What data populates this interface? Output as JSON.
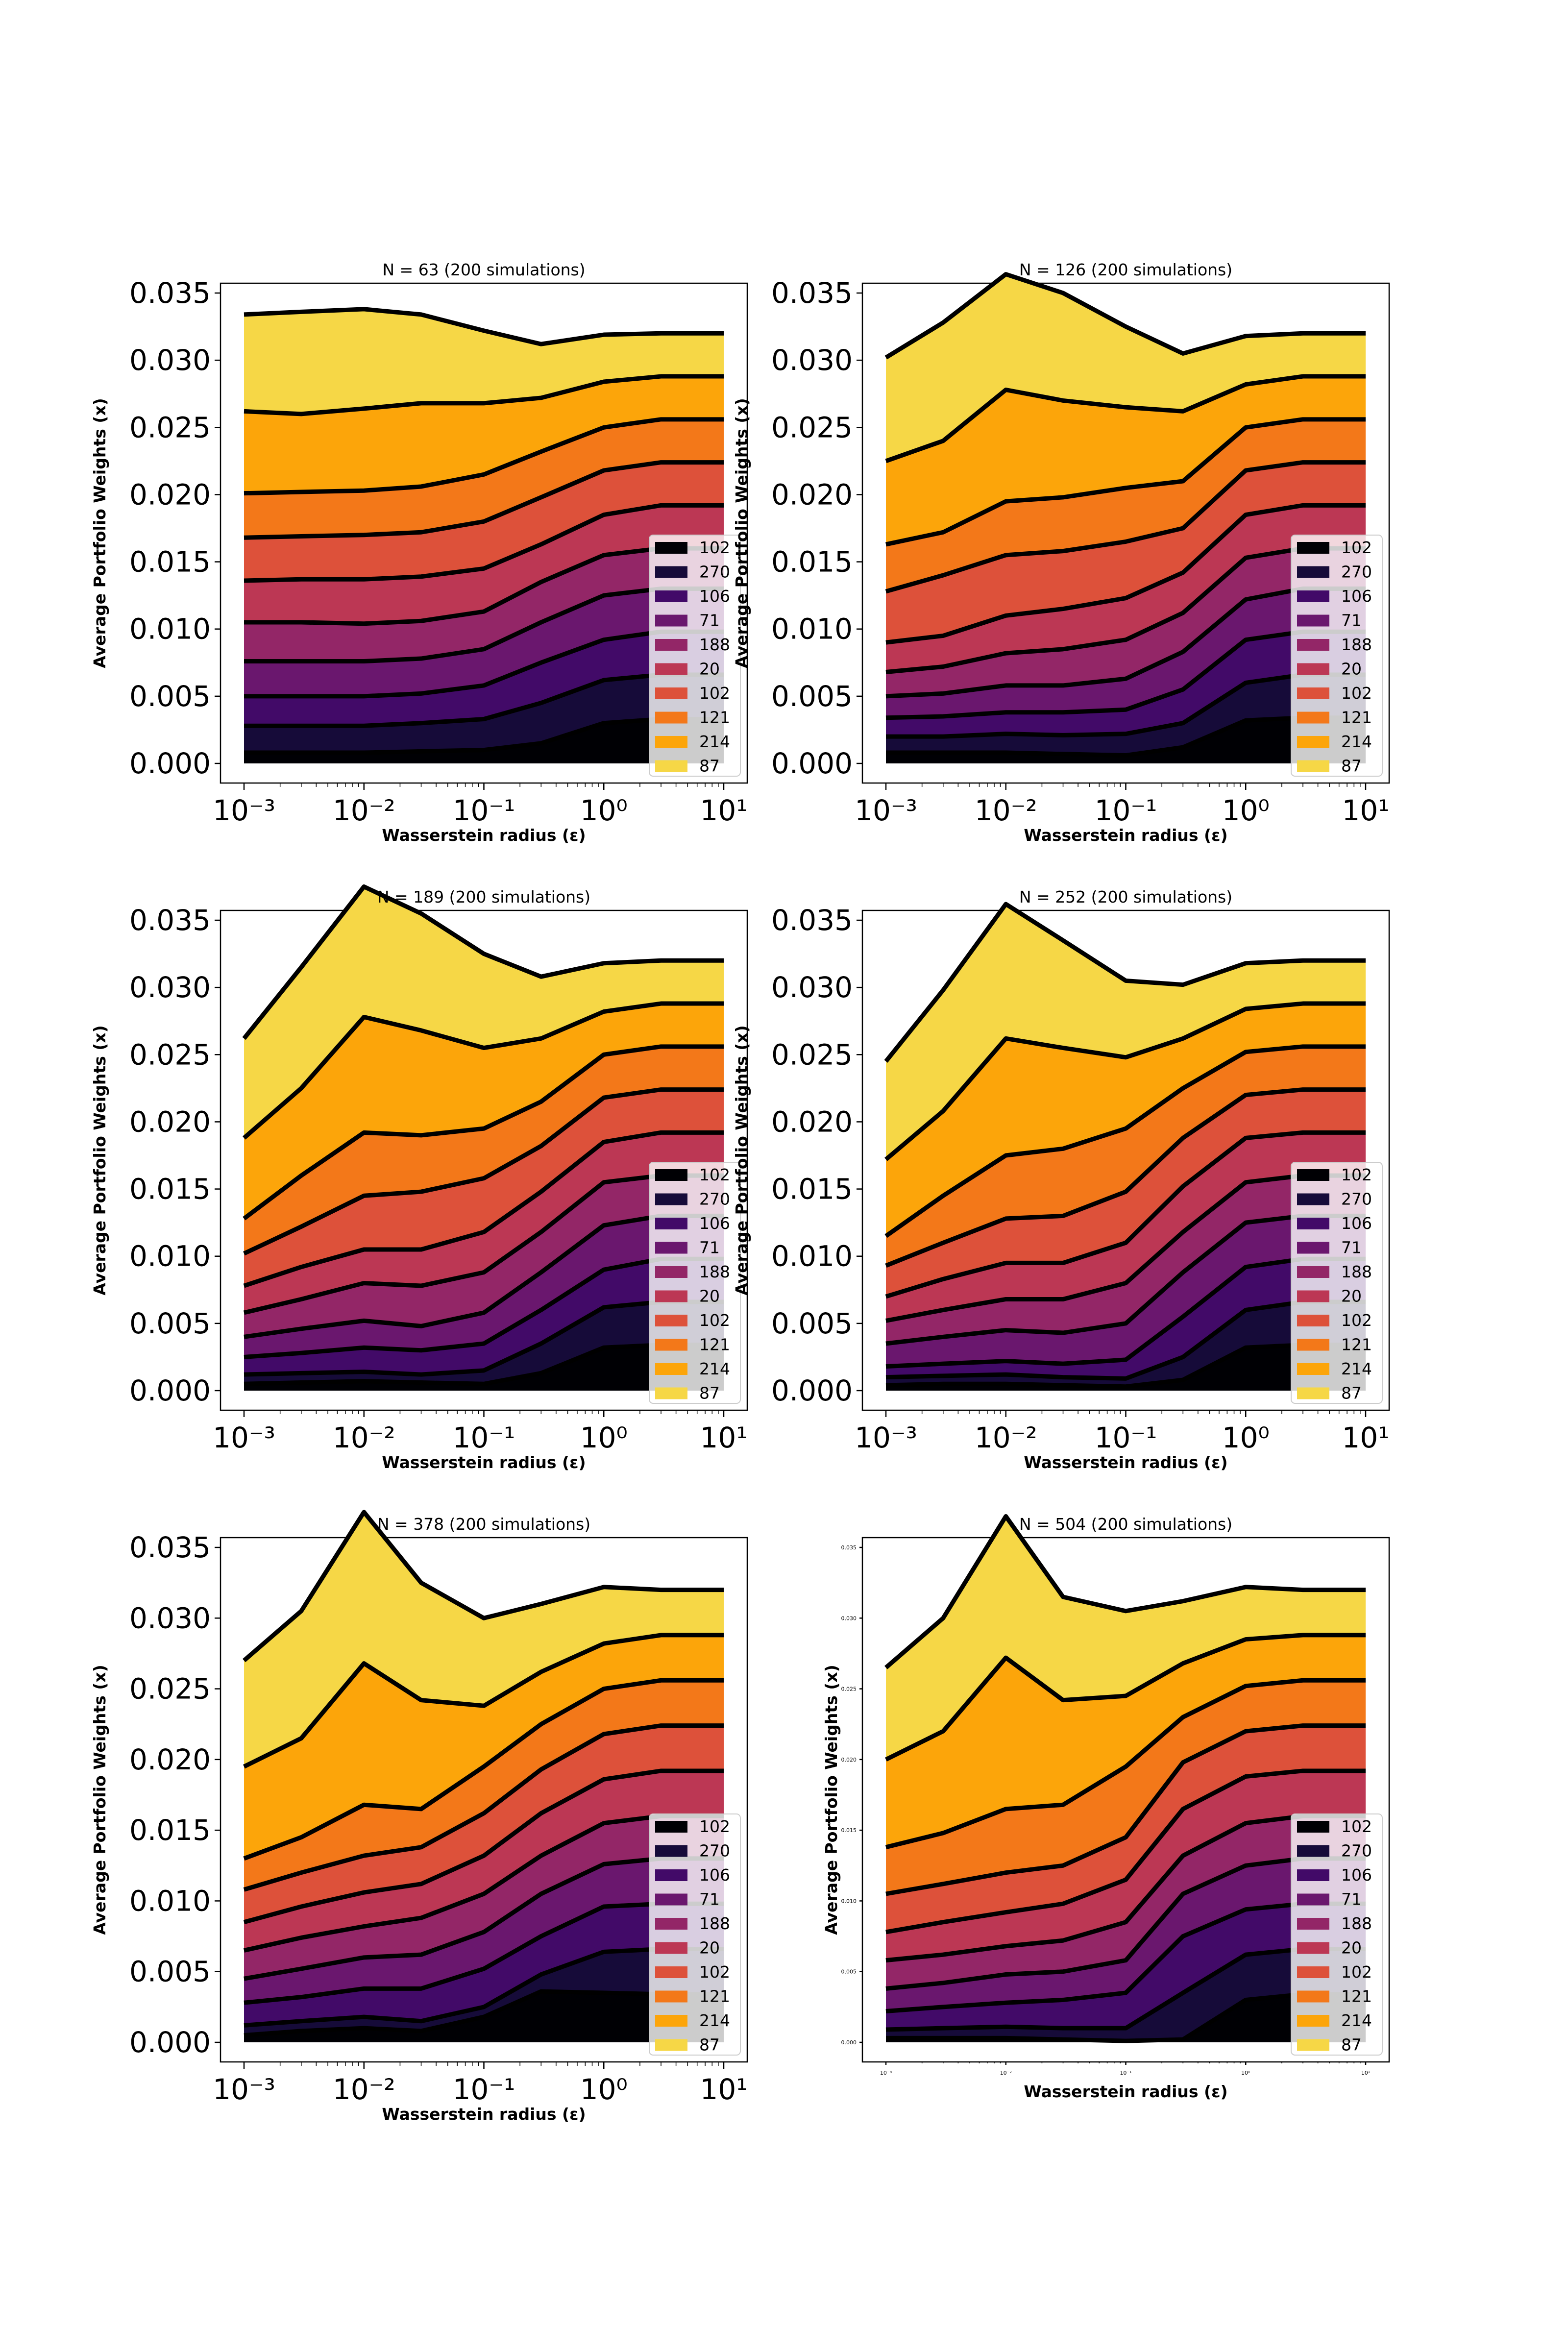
{
  "colors": [
    "#000004",
    "#160b39",
    "#420a68",
    "#6a176e",
    "#932667",
    "#bc3754",
    "#dd513a",
    "#f37819",
    "#fca50a",
    "#f6d746",
    "#fcffa4"
  ],
  "chart_data": [
    {
      "type": "area",
      "title": "N = 63 (200 simulations)",
      "xlabel": "Wasserstein radius (ε)",
      "ylabel": "Average Portfolio Weights (x)",
      "x_scale": "log",
      "xlim": [
        0.001,
        10
      ],
      "ylim": [
        0,
        0.035
      ],
      "xticks": [
        "10⁻³",
        "10⁻²",
        "10⁻¹",
        "10⁰",
        "10¹"
      ],
      "yticks": [
        "0.000",
        "0.005",
        "0.010",
        "0.015",
        "0.020",
        "0.025",
        "0.030",
        "0.035"
      ],
      "legend": [
        "102",
        "270",
        "106",
        "71",
        "188",
        "20",
        "102",
        "121",
        "214",
        "87"
      ],
      "legend_position": "lower right",
      "grid": false,
      "x": [
        0.001,
        0.003,
        0.01,
        0.03,
        0.1,
        0.3,
        1,
        3,
        10
      ],
      "boundaries": [
        [
          0.0008,
          0.0008,
          0.0008,
          0.0009,
          0.001,
          0.0015,
          0.003,
          0.0033,
          0.0033
        ],
        [
          0.0028,
          0.0028,
          0.0028,
          0.003,
          0.0033,
          0.0045,
          0.0062,
          0.0066,
          0.0066
        ],
        [
          0.005,
          0.005,
          0.005,
          0.0052,
          0.0058,
          0.0075,
          0.0092,
          0.0098,
          0.0098
        ],
        [
          0.0076,
          0.0076,
          0.0076,
          0.0078,
          0.0085,
          0.0105,
          0.0125,
          0.013,
          0.013
        ],
        [
          0.0105,
          0.0105,
          0.0104,
          0.0106,
          0.0113,
          0.0135,
          0.0155,
          0.016,
          0.016
        ],
        [
          0.0136,
          0.0137,
          0.0137,
          0.0139,
          0.0145,
          0.0163,
          0.0185,
          0.0192,
          0.0192
        ],
        [
          0.0168,
          0.0169,
          0.017,
          0.0172,
          0.018,
          0.0198,
          0.0218,
          0.0224,
          0.0224
        ],
        [
          0.0201,
          0.0202,
          0.0203,
          0.0206,
          0.0215,
          0.0232,
          0.025,
          0.0256,
          0.0256
        ],
        [
          0.0262,
          0.026,
          0.0264,
          0.0268,
          0.0268,
          0.0272,
          0.0284,
          0.0288,
          0.0288
        ],
        [
          0.0334,
          0.0336,
          0.0338,
          0.0334,
          0.0322,
          0.0312,
          0.0319,
          0.032,
          0.032
        ]
      ]
    },
    {
      "type": "area",
      "title": "N = 126 (200 simulations)",
      "xlabel": "Wasserstein radius (ε)",
      "ylabel": "Average Portfolio Weights (x)",
      "x_scale": "log",
      "xlim": [
        0.001,
        10
      ],
      "ylim": [
        0,
        0.035
      ],
      "xticks": [
        "10⁻³",
        "10⁻²",
        "10⁻¹",
        "10⁰",
        "10¹"
      ],
      "yticks": [
        "0.000",
        "0.005",
        "0.010",
        "0.015",
        "0.020",
        "0.025",
        "0.030",
        "0.035"
      ],
      "legend": [
        "102",
        "270",
        "106",
        "71",
        "188",
        "20",
        "102",
        "121",
        "214",
        "87"
      ],
      "legend_position": "lower right",
      "grid": false,
      "x": [
        0.001,
        0.003,
        0.01,
        0.03,
        0.1,
        0.3,
        1,
        3,
        10
      ],
      "boundaries": [
        [
          0.0008,
          0.0008,
          0.0008,
          0.0007,
          0.0006,
          0.0012,
          0.0032,
          0.0034,
          0.0034
        ],
        [
          0.002,
          0.002,
          0.0022,
          0.0021,
          0.0022,
          0.003,
          0.006,
          0.0066,
          0.0066
        ],
        [
          0.0034,
          0.0035,
          0.0038,
          0.0038,
          0.004,
          0.0055,
          0.0092,
          0.0098,
          0.0098
        ],
        [
          0.005,
          0.0052,
          0.0058,
          0.0058,
          0.0063,
          0.0083,
          0.0122,
          0.013,
          0.013
        ],
        [
          0.0068,
          0.0072,
          0.0082,
          0.0085,
          0.0092,
          0.0112,
          0.0153,
          0.016,
          0.016
        ],
        [
          0.009,
          0.0095,
          0.011,
          0.0115,
          0.0123,
          0.0142,
          0.0185,
          0.0192,
          0.0192
        ],
        [
          0.0128,
          0.014,
          0.0155,
          0.0158,
          0.0165,
          0.0175,
          0.0218,
          0.0224,
          0.0224
        ],
        [
          0.0163,
          0.0172,
          0.0195,
          0.0198,
          0.0205,
          0.021,
          0.025,
          0.0256,
          0.0256
        ],
        [
          0.0225,
          0.024,
          0.0278,
          0.027,
          0.0265,
          0.0262,
          0.0282,
          0.0288,
          0.0288
        ],
        [
          0.0302,
          0.0328,
          0.0364,
          0.035,
          0.0325,
          0.0305,
          0.0318,
          0.032,
          0.032
        ]
      ]
    },
    {
      "type": "area",
      "title": "N = 189 (200 simulations)",
      "xlabel": "Wasserstein radius (ε)",
      "ylabel": "Average Portfolio Weights (x)",
      "x_scale": "log",
      "xlim": [
        0.001,
        10
      ],
      "ylim": [
        0,
        0.035
      ],
      "xticks": [
        "10⁻³",
        "10⁻²",
        "10⁻¹",
        "10⁰",
        "10¹"
      ],
      "yticks": [
        "0.000",
        "0.005",
        "0.010",
        "0.015",
        "0.020",
        "0.025",
        "0.030",
        "0.035"
      ],
      "legend": [
        "102",
        "270",
        "106",
        "71",
        "188",
        "20",
        "102",
        "121",
        "214",
        "87"
      ],
      "legend_position": "lower right",
      "grid": false,
      "x": [
        0.001,
        0.003,
        0.01,
        0.03,
        0.1,
        0.3,
        1,
        3,
        10
      ],
      "boundaries": [
        [
          0.0005,
          0.0006,
          0.0007,
          0.0006,
          0.0005,
          0.0013,
          0.0032,
          0.0034,
          0.0034
        ],
        [
          0.0012,
          0.0013,
          0.0014,
          0.0012,
          0.0015,
          0.0035,
          0.0062,
          0.0066,
          0.0066
        ],
        [
          0.0025,
          0.0028,
          0.0032,
          0.003,
          0.0035,
          0.006,
          0.009,
          0.0098,
          0.0098
        ],
        [
          0.004,
          0.0046,
          0.0052,
          0.0048,
          0.0058,
          0.0088,
          0.0123,
          0.013,
          0.013
        ],
        [
          0.0058,
          0.0068,
          0.008,
          0.0078,
          0.0088,
          0.0118,
          0.0155,
          0.016,
          0.016
        ],
        [
          0.0078,
          0.0092,
          0.0105,
          0.0105,
          0.0118,
          0.0148,
          0.0185,
          0.0192,
          0.0192
        ],
        [
          0.0102,
          0.0122,
          0.0145,
          0.0148,
          0.0158,
          0.0182,
          0.0218,
          0.0224,
          0.0224
        ],
        [
          0.0128,
          0.016,
          0.0192,
          0.019,
          0.0195,
          0.0215,
          0.025,
          0.0256,
          0.0256
        ],
        [
          0.0188,
          0.0225,
          0.0278,
          0.0268,
          0.0255,
          0.0262,
          0.0282,
          0.0288,
          0.0288
        ],
        [
          0.0262,
          0.0315,
          0.0375,
          0.0355,
          0.0325,
          0.0308,
          0.0318,
          0.032,
          0.032
        ]
      ]
    },
    {
      "type": "area",
      "title": "N = 252 (200 simulations)",
      "xlabel": "Wasserstein radius (ε)",
      "ylabel": "Average Portfolio Weights (x)",
      "x_scale": "log",
      "xlim": [
        0.001,
        10
      ],
      "ylim": [
        0,
        0.035
      ],
      "xticks": [
        "10⁻³",
        "10⁻²",
        "10⁻¹",
        "10⁰",
        "10¹"
      ],
      "yticks": [
        "0.000",
        "0.005",
        "0.010",
        "0.015",
        "0.020",
        "0.025",
        "0.030",
        "0.035"
      ],
      "legend": [
        "102",
        "270",
        "106",
        "71",
        "188",
        "20",
        "102",
        "121",
        "214",
        "87"
      ],
      "legend_position": "lower right",
      "grid": false,
      "x": [
        0.001,
        0.003,
        0.01,
        0.03,
        0.1,
        0.3,
        1,
        3,
        10
      ],
      "boundaries": [
        [
          0.0004,
          0.0005,
          0.0005,
          0.0004,
          0.0003,
          0.0008,
          0.0032,
          0.0034,
          0.0034
        ],
        [
          0.001,
          0.0011,
          0.0012,
          0.001,
          0.0009,
          0.0025,
          0.006,
          0.0066,
          0.0066
        ],
        [
          0.0018,
          0.002,
          0.0022,
          0.002,
          0.0023,
          0.0055,
          0.0092,
          0.0098,
          0.0098
        ],
        [
          0.0035,
          0.004,
          0.0045,
          0.0043,
          0.005,
          0.0088,
          0.0125,
          0.013,
          0.013
        ],
        [
          0.0052,
          0.006,
          0.0068,
          0.0068,
          0.008,
          0.0118,
          0.0155,
          0.016,
          0.016
        ],
        [
          0.007,
          0.0083,
          0.0095,
          0.0095,
          0.011,
          0.0152,
          0.0188,
          0.0192,
          0.0192
        ],
        [
          0.0093,
          0.011,
          0.0128,
          0.013,
          0.0148,
          0.0188,
          0.022,
          0.0224,
          0.0224
        ],
        [
          0.0115,
          0.0145,
          0.0175,
          0.018,
          0.0195,
          0.0225,
          0.0252,
          0.0256,
          0.0256
        ],
        [
          0.0172,
          0.0208,
          0.0262,
          0.0255,
          0.0248,
          0.0262,
          0.0284,
          0.0288,
          0.0288
        ],
        [
          0.0245,
          0.0298,
          0.0362,
          0.0335,
          0.0305,
          0.0302,
          0.0318,
          0.032,
          0.032
        ]
      ]
    },
    {
      "type": "area",
      "title": "N = 378 (200 simulations)",
      "xlabel": "Wasserstein radius (ε)",
      "ylabel": "Average Portfolio Weights (x)",
      "x_scale": "log",
      "xlim": [
        0.001,
        10
      ],
      "ylim": [
        0,
        0.035
      ],
      "xticks": [
        "10⁻³",
        "10⁻²",
        "10⁻¹",
        "10⁰",
        "10¹"
      ],
      "yticks": [
        "0.000",
        "0.005",
        "0.010",
        "0.015",
        "0.020",
        "0.025",
        "0.030",
        "0.035"
      ],
      "legend": [
        "102",
        "270",
        "106",
        "71",
        "188",
        "20",
        "102",
        "121",
        "214",
        "87"
      ],
      "legend_position": "lower right",
      "grid": false,
      "x": [
        0.001,
        0.003,
        0.01,
        0.03,
        0.1,
        0.3,
        1,
        3,
        10
      ],
      "boundaries": [
        [
          0.0005,
          0.0008,
          0.001,
          0.0008,
          0.0018,
          0.0036,
          0.0035,
          0.0034,
          0.0034
        ],
        [
          0.0012,
          0.0015,
          0.0018,
          0.0015,
          0.0025,
          0.0048,
          0.0064,
          0.0066,
          0.0066
        ],
        [
          0.0028,
          0.0032,
          0.0038,
          0.0038,
          0.0052,
          0.0075,
          0.0096,
          0.0098,
          0.0098
        ],
        [
          0.0045,
          0.0052,
          0.006,
          0.0062,
          0.0078,
          0.0105,
          0.0126,
          0.013,
          0.013
        ],
        [
          0.0065,
          0.0074,
          0.0082,
          0.0088,
          0.0105,
          0.0132,
          0.0155,
          0.016,
          0.016
        ],
        [
          0.0085,
          0.0096,
          0.0106,
          0.0112,
          0.0132,
          0.0162,
          0.0186,
          0.0192,
          0.0192
        ],
        [
          0.0108,
          0.012,
          0.0132,
          0.0138,
          0.0162,
          0.0193,
          0.0218,
          0.0224,
          0.0224
        ],
        [
          0.013,
          0.0145,
          0.0168,
          0.0165,
          0.0195,
          0.0225,
          0.025,
          0.0256,
          0.0256
        ],
        [
          0.0195,
          0.0215,
          0.0268,
          0.0242,
          0.0238,
          0.0262,
          0.0282,
          0.0288,
          0.0288
        ],
        [
          0.027,
          0.0305,
          0.0375,
          0.0325,
          0.03,
          0.031,
          0.0322,
          0.032,
          0.032
        ]
      ]
    },
    {
      "type": "area",
      "title": "N = 504 (200 simulations)",
      "xlabel": "Wasserstein radius (ε)",
      "ylabel": "Average Portfolio Weights (x)",
      "x_scale": "log",
      "xlim": [
        0.001,
        10
      ],
      "ylim": [
        0,
        0.035
      ],
      "xticks": [
        "10⁻³",
        "10⁻²",
        "10⁻¹",
        "10⁰",
        "10¹"
      ],
      "yticks": [
        "0.000",
        "0.005",
        "0.010",
        "0.015",
        "0.020",
        "0.025",
        "0.030",
        "0.035"
      ],
      "legend": [
        "102",
        "270",
        "106",
        "71",
        "188",
        "20",
        "102",
        "121",
        "214",
        "87"
      ],
      "legend_position": "lower right",
      "grid": false,
      "x": [
        0.001,
        0.003,
        0.01,
        0.03,
        0.1,
        0.3,
        1,
        3,
        10
      ],
      "boundaries": [
        [
          0.0003,
          0.0003,
          0.0003,
          0.0002,
          0.0001,
          0.0002,
          0.003,
          0.0034,
          0.0034
        ],
        [
          0.0009,
          0.001,
          0.0011,
          0.001,
          0.001,
          0.0035,
          0.0062,
          0.0066,
          0.0066
        ],
        [
          0.0022,
          0.0025,
          0.0028,
          0.003,
          0.0035,
          0.0075,
          0.0094,
          0.0098,
          0.0098
        ],
        [
          0.0038,
          0.0042,
          0.0048,
          0.005,
          0.0058,
          0.0105,
          0.0125,
          0.013,
          0.013
        ],
        [
          0.0058,
          0.0062,
          0.0068,
          0.0072,
          0.0085,
          0.0132,
          0.0155,
          0.016,
          0.016
        ],
        [
          0.0078,
          0.0085,
          0.0092,
          0.0098,
          0.0115,
          0.0165,
          0.0188,
          0.0192,
          0.0192
        ],
        [
          0.0105,
          0.0112,
          0.012,
          0.0125,
          0.0145,
          0.0198,
          0.022,
          0.0224,
          0.0224
        ],
        [
          0.0138,
          0.0148,
          0.0165,
          0.0168,
          0.0195,
          0.023,
          0.0252,
          0.0256,
          0.0256
        ],
        [
          0.02,
          0.022,
          0.0272,
          0.0242,
          0.0245,
          0.0268,
          0.0285,
          0.0288,
          0.0288
        ],
        [
          0.0265,
          0.03,
          0.0372,
          0.0315,
          0.0305,
          0.0312,
          0.0322,
          0.032,
          0.032
        ]
      ]
    }
  ]
}
